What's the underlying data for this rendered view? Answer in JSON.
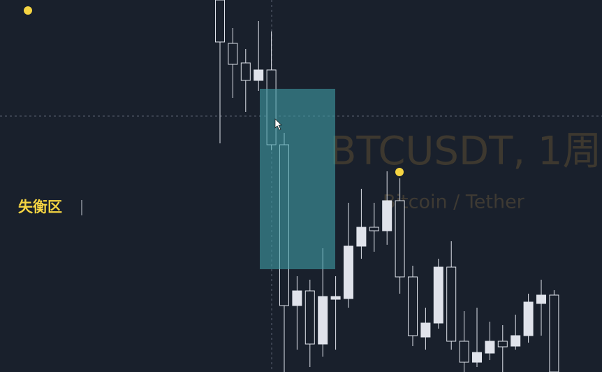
{
  "chart_data": {
    "type": "candlestick",
    "title": "BTCUSDT, 1周",
    "subtitle": "Bitcoin / Tether",
    "annotation": "失衡区",
    "up_color": "#e0e3eb",
    "down_color": "#19202c",
    "outline_color": "#e0e3eb",
    "zone_color": "#3f9ea6",
    "marker_color": "#f5d442",
    "ylim": [
      0,
      532
    ],
    "open": [
      532,
      470,
      442,
      417,
      432,
      325,
      95,
      116,
      40,
      104,
      105,
      180,
      207,
      202,
      245,
      136,
      50,
      70,
      150,
      44,
      14,
      27,
      44,
      37,
      52,
      98,
      110
    ],
    "high": [
      532,
      492,
      462,
      502,
      487,
      342,
      137,
      132,
      177,
      137,
      242,
      262,
      242,
      287,
      277,
      152,
      92,
      162,
      187,
      87,
      92,
      72,
      67,
      82,
      112,
      132,
      117
    ],
    "low": [
      327,
      392,
      372,
      402,
      317,
      0,
      32,
      7,
      22,
      32,
      92,
      162,
      172,
      182,
      112,
      37,
      32,
      62,
      32,
      0,
      7,
      17,
      0,
      32,
      42,
      52,
      0
    ],
    "close": [
      472,
      440,
      417,
      432,
      325,
      95,
      116,
      40,
      108,
      108,
      180,
      207,
      202,
      245,
      136,
      52,
      70,
      150,
      44,
      14,
      28,
      44,
      36,
      52,
      100,
      110,
      0
    ]
  }
}
